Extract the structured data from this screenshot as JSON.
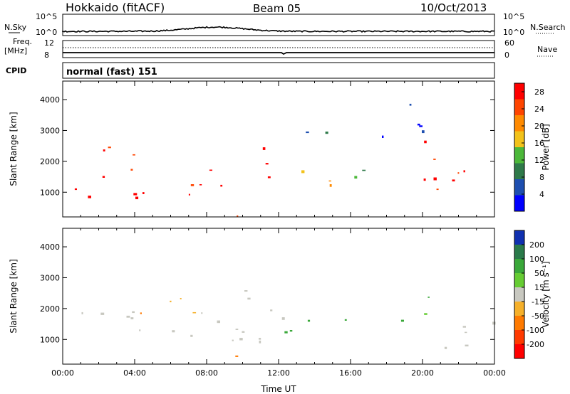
{
  "header": {
    "station": "Hokkaido (fitACF)",
    "beam": "Beam 05",
    "date": "10/Oct/2013"
  },
  "noise_panel": {
    "left_label": "N.Sky",
    "right_label": "N.Search",
    "left_ticks": [
      "10^5",
      "10^0"
    ],
    "right_ticks": [
      "10^5",
      "10^0"
    ]
  },
  "freq_panel": {
    "left_label_1": "Freq.",
    "left_label_2": "[MHz]",
    "right_label": "Nave",
    "left_ticks": [
      "12",
      "8"
    ],
    "right_ticks": [
      "60",
      "0"
    ]
  },
  "cpid_panel": {
    "label": "CPID",
    "text": "normal (fast) 151"
  },
  "chart_data": [
    {
      "type": "heatmap",
      "name": "power",
      "ylabel": "Slant Range [km]",
      "ylim": [
        200,
        4600
      ],
      "yticks": [
        "1000",
        "2000",
        "3000",
        "4000"
      ],
      "xlim": [
        0,
        24
      ],
      "colorbar_label": "Power [dB]",
      "colorbar_ticks": [
        "4",
        "8",
        "12",
        "16",
        "20",
        "24",
        "28"
      ],
      "colorbar_range": [
        0,
        30
      ],
      "colors": [
        "#0000ff",
        "#1e4fb0",
        "#2f7a4a",
        "#4cb83a",
        "#f2c21a",
        "#ff8a00",
        "#ff4500",
        "#ff0000"
      ],
      "echo_regions": [
        {
          "t0": 0.0,
          "t1": 6.0,
          "r0": 700,
          "r1": 1600,
          "v": 27
        },
        {
          "t0": 0.5,
          "t1": 4.5,
          "r0": 1600,
          "r1": 2500,
          "v": 26
        },
        {
          "t0": 6.0,
          "t1": 10.0,
          "r0": 800,
          "r1": 1900,
          "v": 28
        },
        {
          "t0": 10.0,
          "t1": 12.3,
          "r0": 1500,
          "r1": 2500,
          "v": 29
        },
        {
          "t0": 12.3,
          "t1": 13.5,
          "r0": 1300,
          "r1": 1900,
          "v": 20
        },
        {
          "t0": 13.5,
          "t1": 19.0,
          "r0": 1450,
          "r1": 1850,
          "v": 12
        },
        {
          "t0": 13.5,
          "t1": 19.0,
          "r0": 1100,
          "r1": 1450,
          "v": 20
        },
        {
          "t0": 19.0,
          "t1": 24.0,
          "r0": 700,
          "r1": 1800,
          "v": 27
        },
        {
          "t0": 19.0,
          "t1": 21.0,
          "r0": 1800,
          "r1": 2700,
          "v": 26
        },
        {
          "t0": 17.5,
          "t1": 20.0,
          "r0": 2600,
          "r1": 4400,
          "v": 6
        },
        {
          "t0": 12.5,
          "t1": 16.5,
          "r0": 2600,
          "r1": 3100,
          "v": 9
        },
        {
          "t0": 8.8,
          "t1": 12.0,
          "r0": 200,
          "r1": 550,
          "v": 22
        }
      ]
    },
    {
      "type": "heatmap",
      "name": "velocity",
      "ylabel": "Slant Range [km]",
      "ylim": [
        200,
        4600
      ],
      "yticks": [
        "1000",
        "2000",
        "3000",
        "4000"
      ],
      "xlim": [
        0,
        24
      ],
      "xticks": [
        "00:00",
        "04:00",
        "08:00",
        "12:00",
        "16:00",
        "20:00",
        "00:00"
      ],
      "xlabel": "Time UT",
      "colorbar_label": "Velocity [m s⁻¹]",
      "colorbar_ticks": [
        "200",
        "100",
        "50",
        "15",
        "-15",
        "-50",
        "-100",
        "-200"
      ],
      "colors": [
        "#1030b0",
        "#2a7a4a",
        "#3aa83a",
        "#66cc33",
        "#c8c8c0",
        "#f5b02a",
        "#ff7a00",
        "#ff3a00",
        "#ff0000"
      ],
      "echo_regions": [
        {
          "t0": 0.0,
          "t1": 12.3,
          "r0": 700,
          "r1": 2000,
          "v": 0
        },
        {
          "t0": 10.0,
          "t1": 12.3,
          "r0": 2000,
          "r1": 2600,
          "v": 0
        },
        {
          "t0": 12.3,
          "t1": 19.0,
          "r0": 1200,
          "r1": 1850,
          "v": 40
        },
        {
          "t0": 19.0,
          "t1": 24.0,
          "r0": 700,
          "r1": 1800,
          "v": 0
        },
        {
          "t0": 19.0,
          "t1": 20.5,
          "r0": 1800,
          "r1": 2700,
          "v": 40
        },
        {
          "t0": 3.0,
          "t1": 8.0,
          "r0": 1800,
          "r1": 2600,
          "v": -30
        },
        {
          "t0": 9.0,
          "t1": 12.0,
          "r0": 200,
          "r1": 600,
          "v": -60
        }
      ]
    }
  ]
}
